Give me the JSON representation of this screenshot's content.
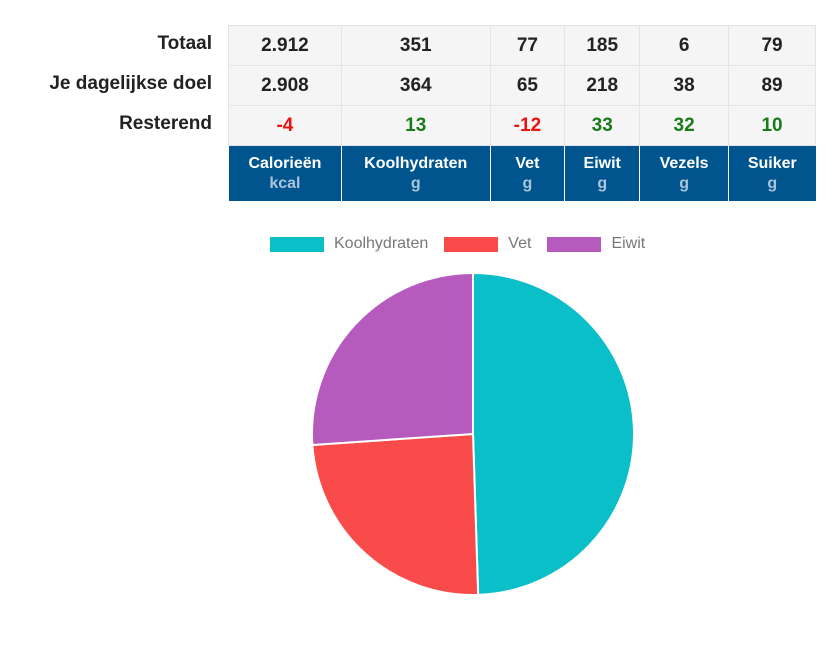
{
  "row_labels": [
    "Totaal",
    "Je dagelijkse doel",
    "Resterend"
  ],
  "columns": [
    {
      "label": "Calorieën",
      "unit": "kcal"
    },
    {
      "label": "Koolhydraten",
      "unit": "g"
    },
    {
      "label": "Vet",
      "unit": "g"
    },
    {
      "label": "Eiwit",
      "unit": "g"
    },
    {
      "label": "Vezels",
      "unit": "g"
    },
    {
      "label": "Suiker",
      "unit": "g"
    }
  ],
  "rows": [
    [
      "2.912",
      "351",
      "77",
      "185",
      "6",
      "79"
    ],
    [
      "2.908",
      "364",
      "65",
      "218",
      "38",
      "89"
    ],
    [
      "-4",
      "13",
      "-12",
      "33",
      "32",
      "10"
    ]
  ],
  "colors": {
    "header": "#00558f",
    "negative": "#ee1111",
    "positive": "#1a7a1a"
  },
  "chart_data": {
    "type": "pie",
    "legend_position": "top",
    "categories": [
      "Koolhydraten",
      "Vet",
      "Eiwit"
    ],
    "values": [
      1404,
      693,
      740
    ],
    "colors": [
      "#0bbfc9",
      "#fa4b4b",
      "#b65abe"
    ]
  }
}
